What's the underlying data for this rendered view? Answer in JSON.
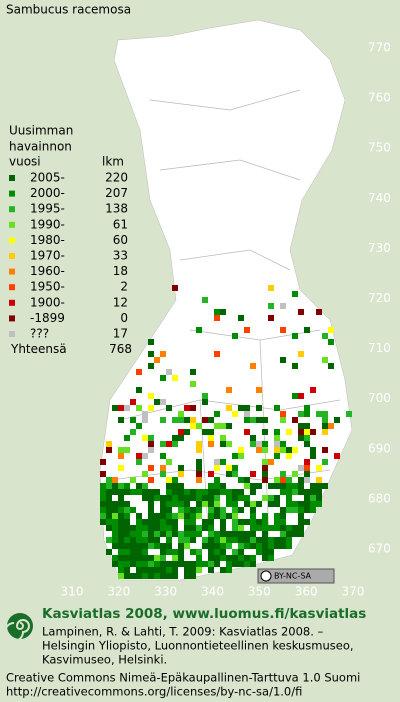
{
  "title": "Sambucus racemosa",
  "legend": {
    "heading": [
      "Uusimman",
      "havainnon",
      "vuosi"
    ],
    "count_heading": "lkm",
    "entries": [
      {
        "label": "2005-",
        "count": 220,
        "color": "#006400"
      },
      {
        "label": "2000-",
        "count": 207,
        "color": "#008c00"
      },
      {
        "label": "1995-",
        "count": 138,
        "color": "#22b422"
      },
      {
        "label": "1990-",
        "count": 61,
        "color": "#66e020"
      },
      {
        "label": "1980-",
        "count": 60,
        "color": "#ffff00"
      },
      {
        "label": "1970-",
        "count": 33,
        "color": "#ffcc00"
      },
      {
        "label": "1960-",
        "count": 18,
        "color": "#ff8000"
      },
      {
        "label": "1950-",
        "count": 2,
        "color": "#ff4000"
      },
      {
        "label": "1900-",
        "count": 12,
        "color": "#cc0000"
      },
      {
        "label": "-1899",
        "count": 0,
        "color": "#800000"
      },
      {
        "label": "???",
        "count": 17,
        "color": "#c0c0c0"
      }
    ],
    "total": {
      "label": "Yhteensä",
      "count": 768
    }
  },
  "axes": {
    "y_labels": [
      770,
      760,
      750,
      740,
      730,
      720,
      710,
      700,
      690,
      680,
      670
    ],
    "x_labels": [
      310,
      320,
      330,
      340,
      350,
      360,
      370
    ]
  },
  "badge": "BY-NC-SA",
  "footer": {
    "site": "Kasviatlas 2008, www.luomus.fi/kasviatlas",
    "citation": [
      "Lampinen, R. & Lahti, T. 2009: Kasviatlas 2008. –",
      "Helsingin Yliopisto, Luonnontieteellinen keskusmuseo,",
      "Kasvimuseo, Helsinki."
    ],
    "license": [
      "Creative Commons Nimeä-Epäkaupallinen-Tarttuva 1.0 Suomi",
      "http://creativecommons.org/licenses/by-nc-sa/1.0/fi"
    ]
  }
}
